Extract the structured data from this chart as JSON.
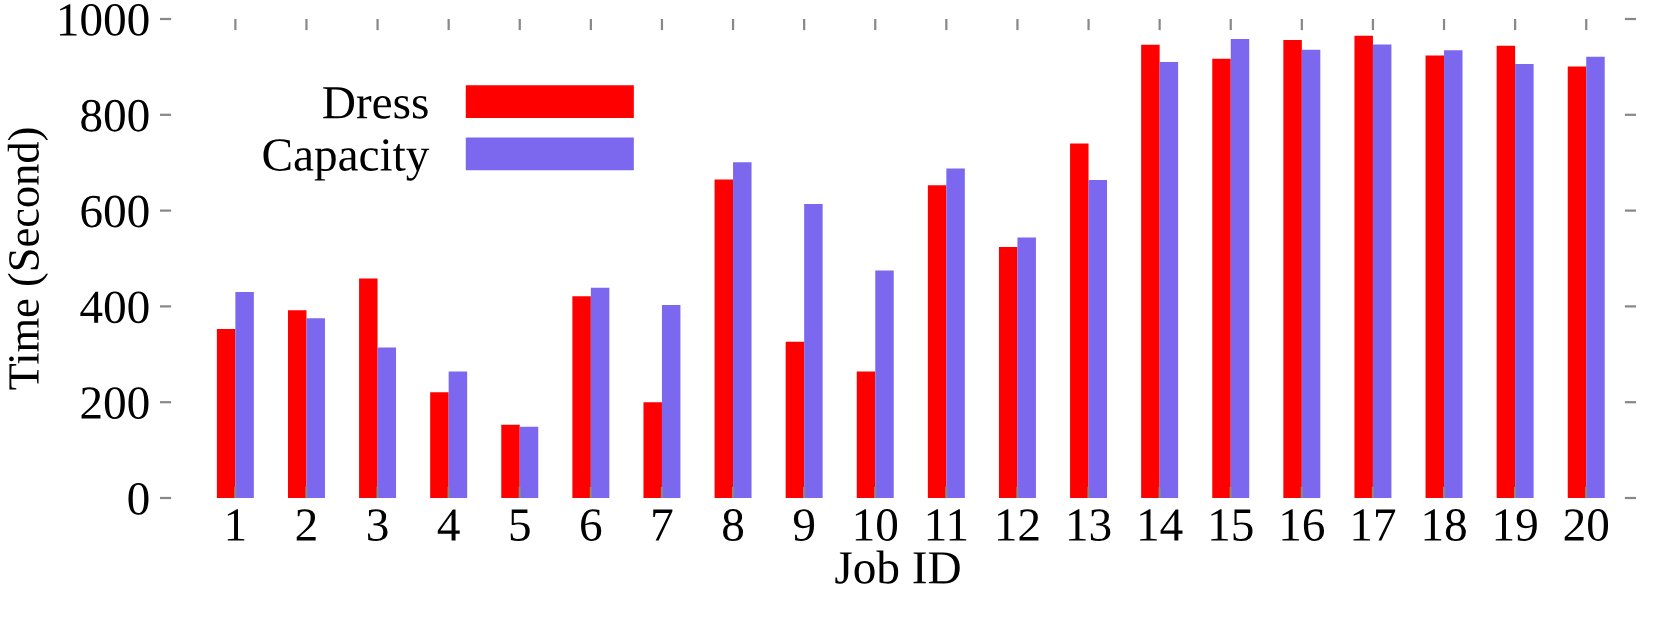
{
  "chart_data": {
    "type": "bar",
    "xlabel": "Job ID",
    "ylabel": "Time (Second)",
    "categories": [
      "1",
      "2",
      "3",
      "4",
      "5",
      "6",
      "7",
      "8",
      "9",
      "10",
      "11",
      "12",
      "13",
      "14",
      "15",
      "16",
      "17",
      "18",
      "19",
      "20"
    ],
    "series": [
      {
        "name": "Dress",
        "color": "#ff0000",
        "values": [
          353,
          392,
          458,
          221,
          153,
          421,
          200,
          665,
          326,
          264,
          653,
          524,
          740,
          946,
          917,
          956,
          965,
          924,
          944,
          901
        ]
      },
      {
        "name": "Capacity",
        "color": "#7b68ee",
        "values": [
          430,
          375,
          314,
          264,
          149,
          439,
          403,
          701,
          614,
          475,
          688,
          544,
          664,
          910,
          958,
          936,
          947,
          935,
          906,
          921
        ]
      }
    ],
    "ylim": [
      0,
      1000
    ],
    "yticks": [
      0,
      200,
      400,
      600,
      800,
      1000
    ],
    "grid": false,
    "legend": "top left"
  }
}
